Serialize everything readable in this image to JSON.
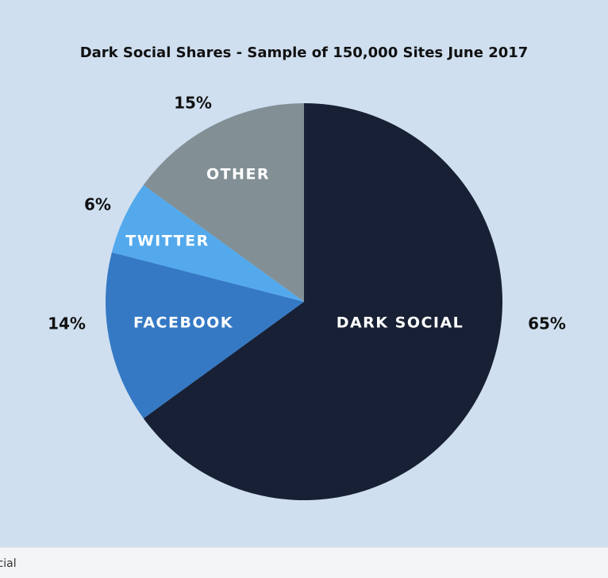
{
  "chart_data": {
    "type": "pie",
    "title": "Dark Social Shares - Sample of 150,000 Sites June 2017",
    "start_angle_deg": 0,
    "direction": "clockwise",
    "slices": [
      {
        "label": "DARK SOCIAL",
        "value": 65,
        "pct_label": "65%",
        "color": "#172034"
      },
      {
        "label": "FACEBOOK",
        "value": 14,
        "pct_label": "14%",
        "color": "#3579c4"
      },
      {
        "label": "TWITTER",
        "value": 6,
        "pct_label": "6%",
        "color": "#53a9ec"
      },
      {
        "label": "OTHER",
        "value": 15,
        "pct_label": "15%",
        "color": "#829096"
      }
    ]
  },
  "caption": {
    "text": "ocial"
  }
}
